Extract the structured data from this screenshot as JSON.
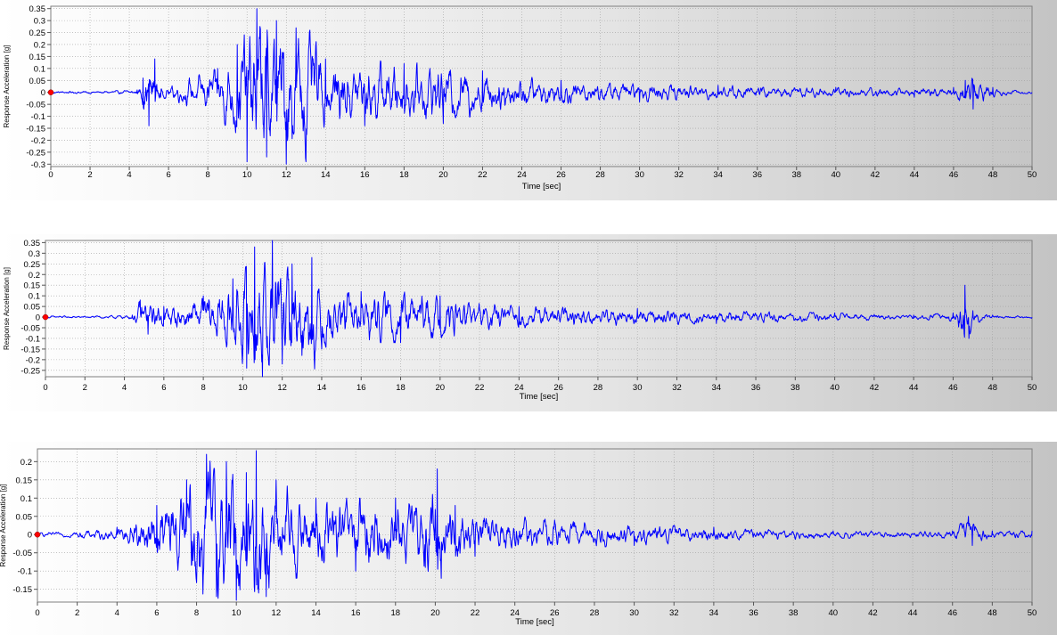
{
  "chart_data": [
    {
      "type": "line",
      "xlabel": "Time [sec]",
      "ylabel": "Response Acceleration [g]",
      "xlim": [
        0,
        50
      ],
      "ylim": [
        -0.31,
        0.36
      ],
      "x_ticks": [
        0,
        2,
        4,
        6,
        8,
        10,
        12,
        14,
        16,
        18,
        20,
        22,
        24,
        26,
        28,
        30,
        32,
        34,
        36,
        38,
        40,
        42,
        44,
        46,
        48,
        50
      ],
      "y_ticks": [
        0.35,
        0.3,
        0.25,
        0.2,
        0.15,
        0.1,
        0.05,
        0,
        -0.05,
        -0.1,
        -0.15,
        -0.2,
        -0.25,
        -0.3
      ],
      "grid": true,
      "line_color": "#0000ff",
      "marker_color": "#ff0000",
      "series": [
        {
          "x": [
            0,
            4.4,
            4.7,
            5.0,
            5.3,
            5.6,
            8.5,
            9.5,
            10.0,
            10.5,
            11.0,
            11.5,
            12.0,
            12.5,
            13.0,
            14.0,
            16.0,
            18.0,
            20.0,
            22.0,
            26.0,
            30.0,
            34.0,
            40.0,
            44.0,
            46.0,
            46.6,
            47.0,
            48.0,
            50.0
          ],
          "y": [
            0,
            0.01,
            0.06,
            -0.14,
            0.14,
            -0.02,
            0.1,
            0.2,
            -0.29,
            0.35,
            -0.27,
            0.3,
            -0.3,
            0.27,
            -0.29,
            0.14,
            -0.14,
            0.12,
            -0.13,
            0.09,
            0.05,
            -0.04,
            0.03,
            0.02,
            -0.02,
            0.02,
            0.05,
            -0.07,
            0.02,
            0.0
          ]
        }
      ]
    },
    {
      "type": "line",
      "xlabel": "Time [sec]",
      "ylabel": "Response Acceleration [g]",
      "xlim": [
        0,
        50
      ],
      "ylim": [
        -0.28,
        0.36
      ],
      "x_ticks": [
        0,
        2,
        4,
        6,
        8,
        10,
        12,
        14,
        16,
        18,
        20,
        22,
        24,
        26,
        28,
        30,
        32,
        34,
        36,
        38,
        40,
        42,
        44,
        46,
        48,
        50
      ],
      "y_ticks": [
        0.35,
        0.3,
        0.25,
        0.2,
        0.15,
        0.1,
        0.05,
        0,
        -0.05,
        -0.1,
        -0.15,
        -0.2,
        -0.25
      ],
      "grid": true,
      "line_color": "#0000ff",
      "marker_color": "#ff0000",
      "series": [
        {
          "x": [
            0,
            4.4,
            4.8,
            5.2,
            6.0,
            8.0,
            9.5,
            10.2,
            10.6,
            11.0,
            11.5,
            12.0,
            12.5,
            13.0,
            13.5,
            14.0,
            16.0,
            18.0,
            20.0,
            24.0,
            30.0,
            34.0,
            40.0,
            44.0,
            46.0,
            46.6,
            46.8,
            47.0,
            48.0,
            50.0
          ],
          "y": [
            0,
            0.01,
            0.08,
            -0.08,
            0.05,
            0.1,
            0.18,
            -0.24,
            0.33,
            -0.28,
            0.36,
            -0.22,
            0.25,
            -0.18,
            0.28,
            -0.15,
            0.12,
            -0.12,
            0.1,
            0.05,
            0.04,
            -0.03,
            0.02,
            0.01,
            0.02,
            0.15,
            -0.1,
            0.03,
            0.01,
            0.0
          ]
        }
      ]
    },
    {
      "type": "line",
      "xlabel": "Time [sec]",
      "ylabel": "Response Acceleration [g]",
      "xlim": [
        0,
        50
      ],
      "ylim": [
        -0.185,
        0.235
      ],
      "x_ticks": [
        0,
        2,
        4,
        6,
        8,
        10,
        12,
        14,
        16,
        18,
        20,
        22,
        24,
        26,
        28,
        30,
        32,
        34,
        36,
        38,
        40,
        42,
        44,
        46,
        48,
        50
      ],
      "y_ticks": [
        0.2,
        0.15,
        0.1,
        0.05,
        0,
        -0.05,
        -0.1,
        -0.15
      ],
      "grid": true,
      "line_color": "#0000ff",
      "marker_color": "#ff0000",
      "series": [
        {
          "x": [
            0,
            4.0,
            6.0,
            7.5,
            8.5,
            9.0,
            9.5,
            10.0,
            10.5,
            11.0,
            11.5,
            12.0,
            13.0,
            14.0,
            16.0,
            18.0,
            19.5,
            20.1,
            20.3,
            21.0,
            22.0,
            26.0,
            30.0,
            34.0,
            40.0,
            46.0,
            46.8,
            47.0,
            48.0,
            50.0
          ],
          "y": [
            0,
            0.02,
            0.08,
            0.15,
            0.22,
            -0.17,
            0.2,
            -0.18,
            0.17,
            0.23,
            -0.17,
            0.15,
            -0.12,
            0.1,
            -0.1,
            0.1,
            -0.09,
            0.18,
            -0.12,
            0.08,
            -0.06,
            0.04,
            -0.03,
            0.02,
            0.01,
            0.01,
            0.05,
            -0.03,
            0.01,
            0.01
          ]
        }
      ]
    }
  ]
}
